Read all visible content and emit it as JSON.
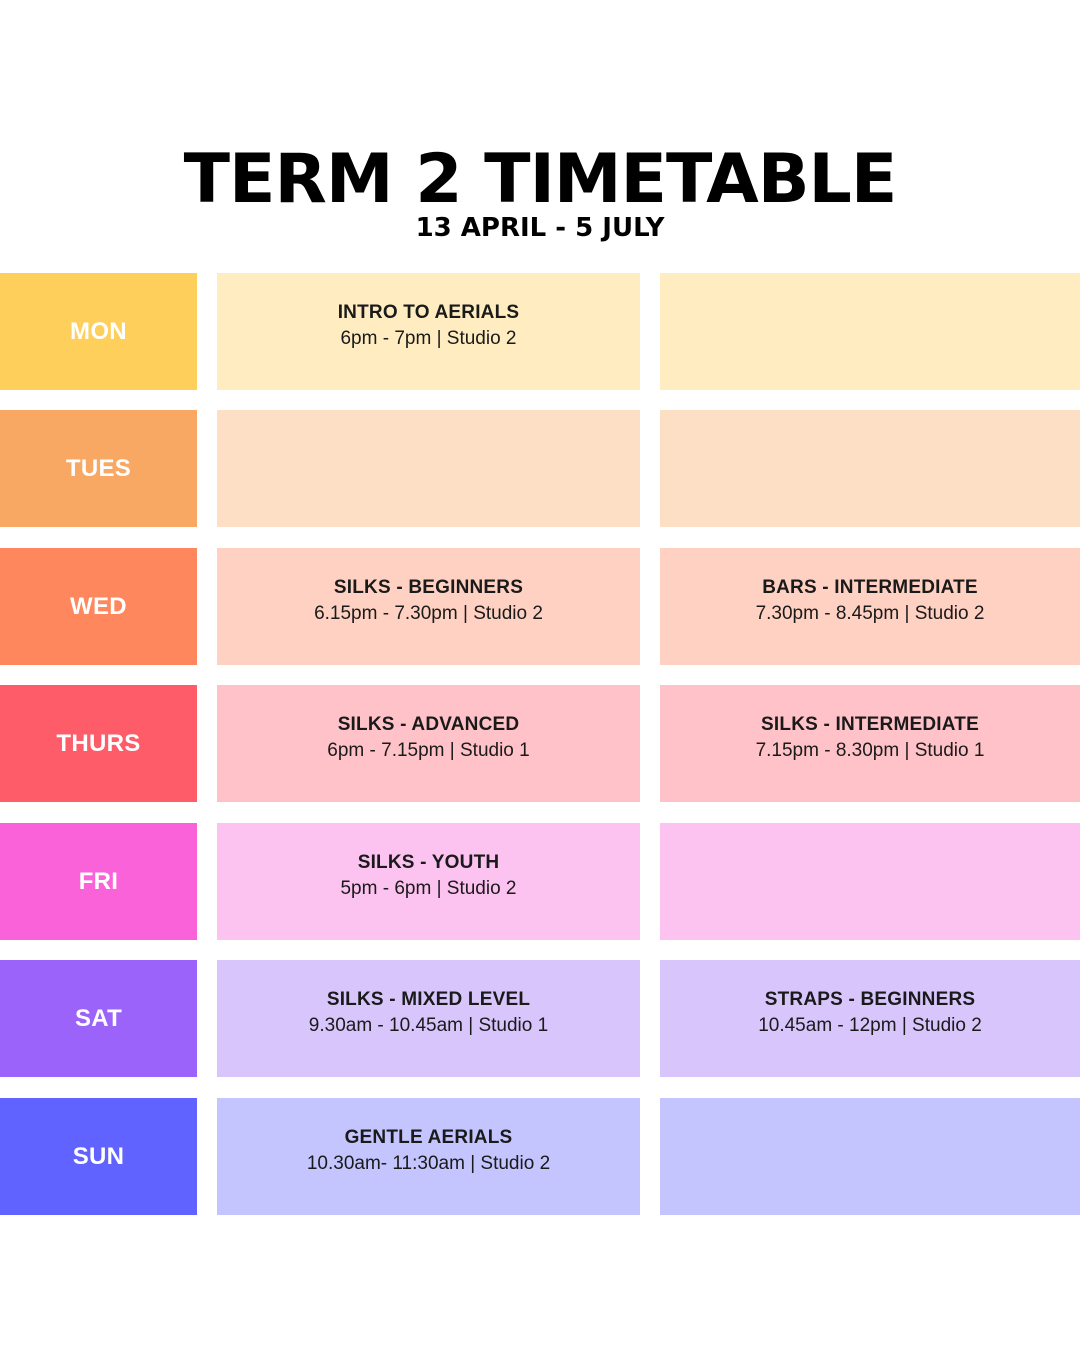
{
  "header": {
    "title": "TERM 2 TIMETABLE",
    "dates": "13 APRIL - 5 JULY"
  },
  "rows": [
    {
      "day": "MON",
      "day_color": "#FFCF5C",
      "slot_color": "#FFEDC1",
      "slots": [
        {
          "name": "INTRO TO AERIALS",
          "time": "6pm - 7pm | Studio 2"
        },
        {
          "name": "",
          "time": ""
        }
      ]
    },
    {
      "day": "TUES",
      "day_color": "#F8A862",
      "slot_color": "#FCDFC4",
      "slots": [
        {
          "name": "",
          "time": ""
        },
        {
          "name": "",
          "time": ""
        }
      ]
    },
    {
      "day": "WED",
      "day_color": "#FF875D",
      "slot_color": "#FFD1C2",
      "slots": [
        {
          "name": "SILKS - BEGINNERS",
          "time": "6.15pm - 7.30pm | Studio 2"
        },
        {
          "name": "BARS - INTERMEDIATE",
          "time": "7.30pm - 8.45pm | Studio 2"
        }
      ]
    },
    {
      "day": "THURS",
      "day_color": "#FF5C69",
      "slot_color": "#FFC2C8",
      "slots": [
        {
          "name": "SILKS - ADVANCED",
          "time": "6pm - 7.15pm | Studio 1"
        },
        {
          "name": "SILKS - INTERMEDIATE",
          "time": "7.15pm - 8.30pm | Studio 1"
        }
      ]
    },
    {
      "day": "FRI",
      "day_color": "#FA62D9",
      "slot_color": "#FCC2F0",
      "slots": [
        {
          "name": "SILKS - YOUTH",
          "time": "5pm - 6pm | Studio 2"
        },
        {
          "name": "",
          "time": ""
        }
      ]
    },
    {
      "day": "SAT",
      "day_color": "#9B63FA",
      "slot_color": "#D8C5FC",
      "slots": [
        {
          "name": "SILKS - MIXED LEVEL",
          "time": "9.30am - 10.45am | Studio 1"
        },
        {
          "name": "STRAPS - BEGINNERS",
          "time": "10.45am - 12pm | Studio 2"
        }
      ]
    },
    {
      "day": "SUN",
      "day_color": "#6063FF",
      "slot_color": "#C4C4FF",
      "slots": [
        {
          "name": "GENTLE AERIALS",
          "time": "10.30am- 11:30am | Studio 2"
        },
        {
          "name": "",
          "time": ""
        }
      ]
    }
  ]
}
